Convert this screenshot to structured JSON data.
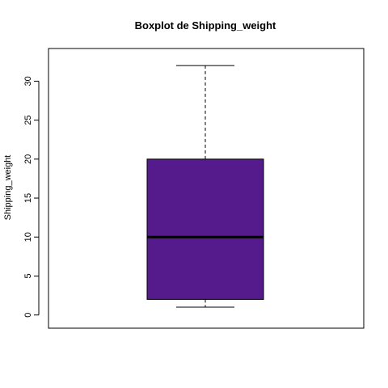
{
  "chart_data": {
    "type": "boxplot",
    "title": "Boxplot de Shipping_weight",
    "xlabel": "",
    "ylabel": "Shipping_weight",
    "ylim": [
      -0.5,
      33
    ],
    "yticks": [
      0,
      5,
      10,
      15,
      20,
      25,
      30
    ],
    "grid": false,
    "legend": "none",
    "box": {
      "min": 1,
      "q1": 2,
      "median": 10,
      "q3": 20,
      "max": 32
    },
    "box_color": "#551A8B"
  }
}
